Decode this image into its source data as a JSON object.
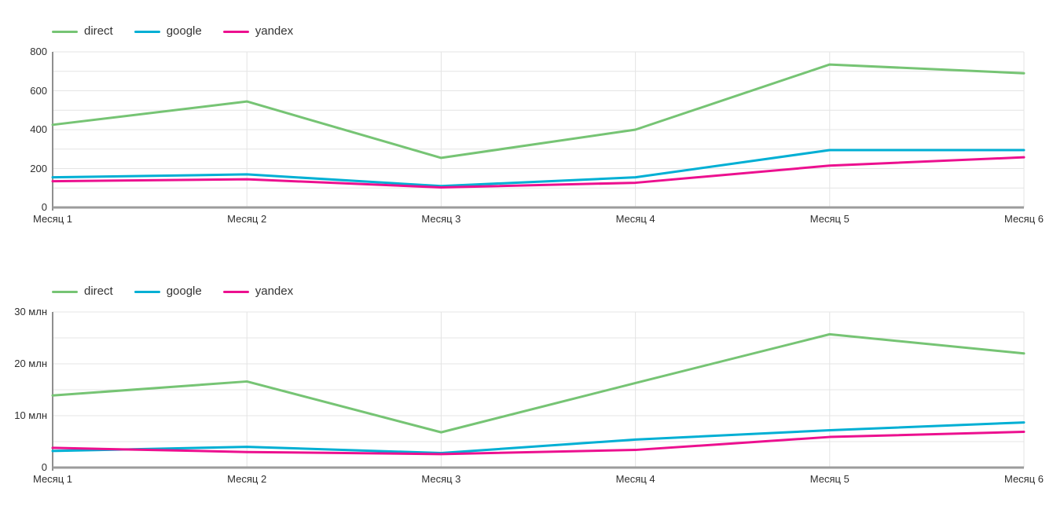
{
  "page": {
    "background": "#ffffff",
    "text_color": "#2e2e2e"
  },
  "chart_data": [
    {
      "type": "line",
      "legend_position": "top-left",
      "grid": true,
      "categories": [
        "Месяц 1",
        "Месяц 2",
        "Месяц 3",
        "Месяц 4",
        "Месяц 5",
        "Месяц 6"
      ],
      "ylim": [
        0,
        800
      ],
      "grid_step": 100,
      "yticks": [
        {
          "value": 0,
          "label": "0"
        },
        {
          "value": 200,
          "label": "200"
        },
        {
          "value": 400,
          "label": "400"
        },
        {
          "value": 600,
          "label": "600"
        },
        {
          "value": 800,
          "label": "800"
        }
      ],
      "series": [
        {
          "name": "direct",
          "color": "#76C474",
          "values": [
            425,
            545,
            255,
            400,
            735,
            690
          ]
        },
        {
          "name": "google",
          "color": "#00AFD4",
          "values": [
            155,
            170,
            110,
            155,
            295,
            295
          ]
        },
        {
          "name": "yandex",
          "color": "#EC108F",
          "values": [
            135,
            145,
            103,
            127,
            215,
            258
          ]
        }
      ]
    },
    {
      "type": "line",
      "legend_position": "top-left",
      "grid": true,
      "categories": [
        "Месяц 1",
        "Месяц 2",
        "Месяц 3",
        "Месяц 4",
        "Месяц 5",
        "Месяц 6"
      ],
      "ylim": [
        0,
        30
      ],
      "grid_step": 5,
      "yticks": [
        {
          "value": 0,
          "label": "0"
        },
        {
          "value": 10,
          "label": "10 млн"
        },
        {
          "value": 20,
          "label": "20 млн"
        },
        {
          "value": 30,
          "label": "30 млн"
        }
      ],
      "series": [
        {
          "name": "direct",
          "color": "#76C474",
          "values": [
            13.9,
            16.6,
            6.8,
            16.3,
            25.7,
            22.0
          ]
        },
        {
          "name": "google",
          "color": "#00AFD4",
          "values": [
            3.2,
            4.0,
            2.8,
            5.4,
            7.2,
            8.7
          ]
        },
        {
          "name": "yandex",
          "color": "#EC108F",
          "values": [
            3.8,
            3.0,
            2.6,
            3.4,
            5.9,
            6.9
          ]
        }
      ]
    }
  ]
}
